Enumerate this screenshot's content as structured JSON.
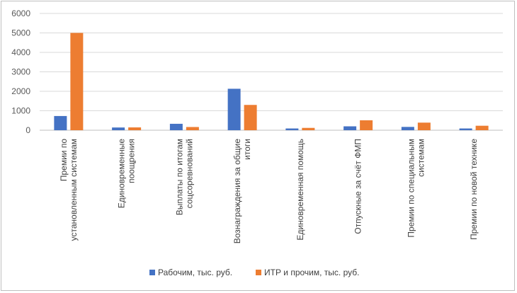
{
  "chart_data": {
    "type": "bar",
    "categories": [
      [
        "Премии по",
        "установленным системам"
      ],
      [
        "Единовременные",
        "поощрения"
      ],
      [
        "Выплаты по итогам",
        "соцсоревнований"
      ],
      [
        "Вознаграждения за общие",
        "итоги"
      ],
      [
        "Единовременная помощь"
      ],
      [
        "Отпускные за счёт ФМП"
      ],
      [
        "Премии по специальным",
        "системам"
      ],
      [
        "Премии по новой технике"
      ]
    ],
    "series": [
      {
        "name": "Рабочим, тыс. руб.",
        "color": "#4472C4",
        "values": [
          730,
          140,
          330,
          2130,
          90,
          200,
          170,
          90
        ]
      },
      {
        "name": "ИТР и прочим, тыс. руб.",
        "color": "#ED7D31",
        "values": [
          5000,
          145,
          165,
          1300,
          120,
          510,
          390,
          230
        ]
      }
    ],
    "y_ticks": [
      0,
      1000,
      2000,
      3000,
      4000,
      5000,
      6000
    ],
    "ylim": [
      0,
      6000
    ],
    "grid": true,
    "legend_position": "bottom"
  }
}
